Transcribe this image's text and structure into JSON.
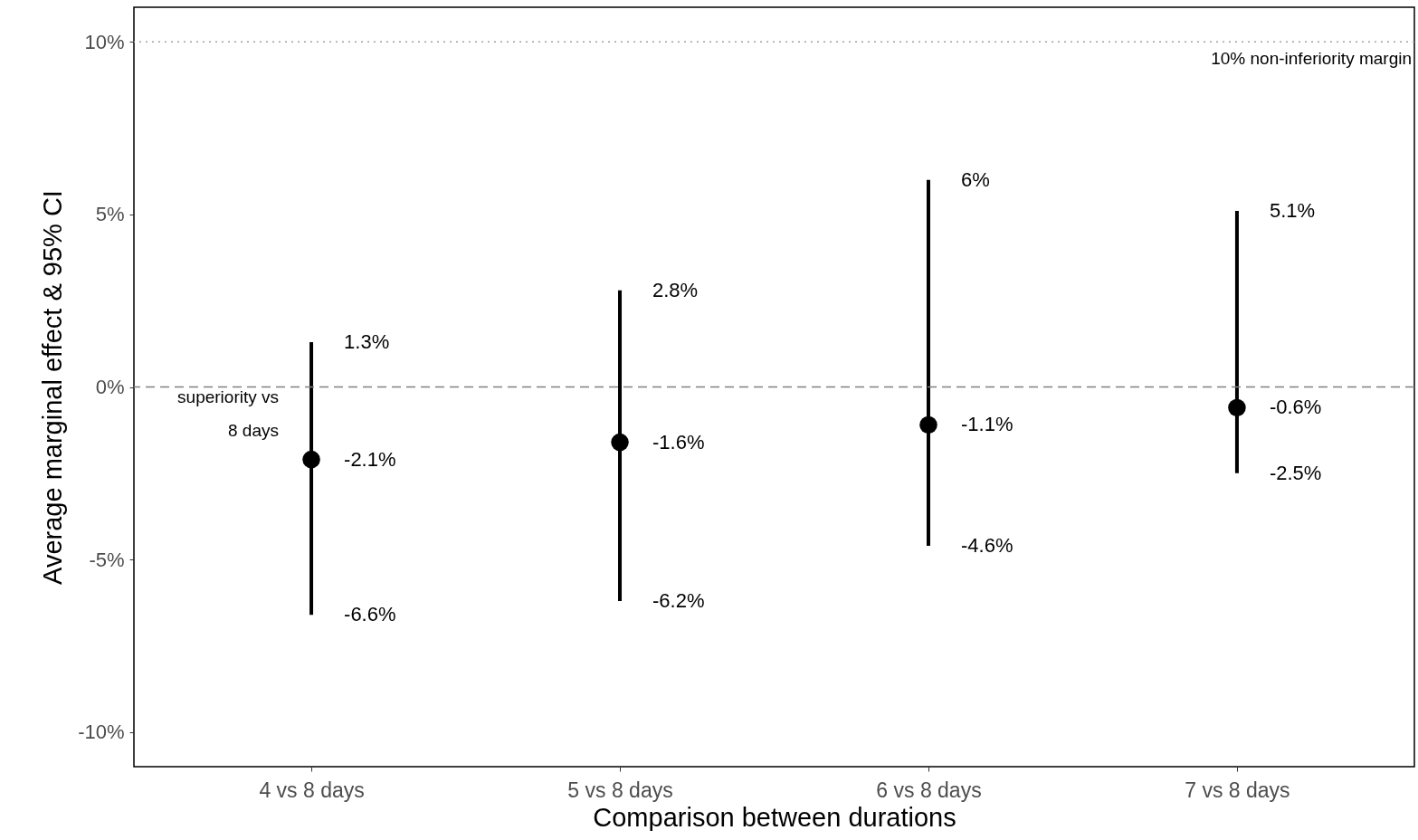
{
  "chart_data": {
    "type": "scatter",
    "xlabel": "Comparison between durations",
    "ylabel": "Average marginal effect & 95% CI",
    "categories": [
      "4 vs 8 days",
      "5 vs 8 days",
      "6 vs 8 days",
      "7 vs 8 days"
    ],
    "series": [
      {
        "color": "#000000",
        "values": [
          -2.1,
          -1.6,
          -1.1,
          -0.6
        ],
        "errors": [
          [
            -6.6,
            1.3
          ],
          [
            -6.2,
            2.8
          ],
          [
            -4.6,
            6
          ],
          [
            -2.5,
            5.1
          ]
        ],
        "value_labels": [
          "-2.1%",
          "-1.6%",
          "-1.1%",
          "-0.6%"
        ]
      }
    ],
    "marker": "circle",
    "ylim": [
      -11,
      11
    ],
    "yticks": [
      {
        "value": -10,
        "label": "-10%"
      },
      {
        "value": -5,
        "label": "-5%"
      },
      {
        "value": 0,
        "label": "0%"
      },
      {
        "value": 5,
        "label": "5%"
      },
      {
        "value": 10,
        "label": "10%"
      }
    ],
    "grid": false,
    "ref_lines": [
      {
        "axis": "y",
        "value": 10,
        "label": "10% non-inferiority margin",
        "line_style": "dotted",
        "color": "#a0a0a0"
      },
      {
        "axis": "y",
        "value": 0,
        "label": "superiority vs\n8 days",
        "line_style": "dashed",
        "color": "#808080"
      }
    ],
    "annotations": [
      "1.3%",
      "-6.6%",
      "2.8%",
      "-6.2%",
      "6%",
      "-4.6%",
      "5.1%",
      "-2.5%"
    ]
  }
}
